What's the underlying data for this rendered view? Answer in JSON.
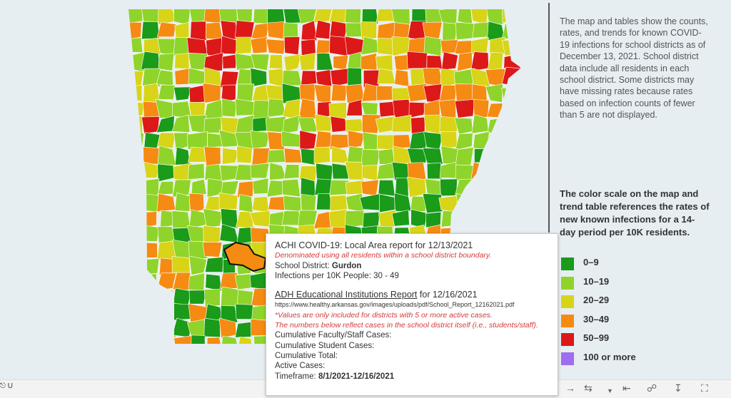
{
  "description": "The map and tables show the counts, rates, and trends for known COVID-19 infections for school districts as of December 13, 2021. School district data include all residents in each school district. Some districts may have missing rates because rates based on infection counts of fewer than 5 are not displayed.",
  "scale_title": "The color scale on the map and trend table references the rates of new known infections for a 14-day period per 10K residents.",
  "legend": [
    {
      "label": "0–9",
      "color": "#1a9b1a"
    },
    {
      "label": "10–19",
      "color": "#8fd42a"
    },
    {
      "label": "20–29",
      "color": "#d8d418"
    },
    {
      "label": "30–49",
      "color": "#f58b12"
    },
    {
      "label": "50–99",
      "color": "#dc1818"
    },
    {
      "label": "100 or more",
      "color": "#a06cf0"
    }
  ],
  "tooltip": {
    "achi_title": "ACHI COVID-19: Local Area report for 12/13/2021",
    "achi_note": "Denominated using all residents within a school district boundary.",
    "district_label": "School District:",
    "district_value": "Gurdon",
    "rate_label": "Infections per 10K People:",
    "rate_value": "30 - 49",
    "adh_title": "ADH Educational Institutions Report",
    "adh_title_suffix": "for 12/16/2021",
    "url": "https://www.healthy.arkansas.gov/images/uploads/pdf/School_Report_12162021.pdf",
    "note1": "*Values are only included for districts with 5 or more active cases.",
    "note2": "The numbers below reflect cases in the school district itself (i.e., students/staff).",
    "faculty_label": "Cumulative Faculty/Staff Cases:",
    "student_label": "Cumulative Student Cases:",
    "total_label": "Cumulative Total:",
    "active_label": "Active Cases:",
    "timeframe_label": "Timeframe:",
    "timeframe_value": "8/1/2021-12/16/2021"
  },
  "toolbar": {
    "undo_label": "U",
    "icons": [
      "redo-icon",
      "revert-icon",
      "revert-dropdown-icon",
      "first-icon",
      "share-icon",
      "download-icon",
      "fullscreen-icon"
    ]
  }
}
